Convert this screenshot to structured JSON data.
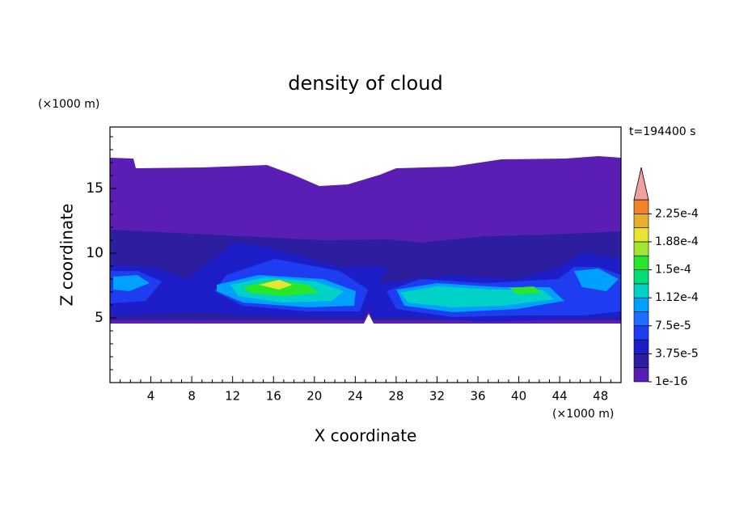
{
  "chart_data": {
    "type": "contour",
    "title": "density of cloud",
    "xlabel": "X coordinate",
    "ylabel": "Z coordinate",
    "x_unit": "(×1000 m)",
    "y_unit": "(×1000 m)",
    "time_label": "t=194400 s",
    "xlim": [
      0,
      50
    ],
    "ylim": [
      0,
      19.75
    ],
    "xticks": [
      4,
      8,
      12,
      16,
      20,
      24,
      28,
      32,
      36,
      40,
      44,
      48
    ],
    "yticks": [
      5,
      10,
      15
    ],
    "colorbar": {
      "levels": [
        1e-16,
        1.875e-05,
        {
          "value": 3.75e-05,
          "label": "3.75e-5"
        },
        5.625e-05,
        {
          "value": 7.5e-05,
          "label": "7.5e-5"
        },
        9.375e-05,
        {
          "value": 0.000112,
          "label": "1.12e-4"
        },
        0.00013125,
        {
          "value": 0.00015,
          "label": "1.5e-4"
        },
        0.00016875,
        {
          "value": 0.000188,
          "label": "1.88e-4"
        },
        0.00020625,
        {
          "value": 0.000225,
          "label": "2.25e-4"
        }
      ],
      "colors": [
        "#5a1eb4",
        "#2d1ea0",
        "#1e1ec8",
        "#1e3cf0",
        "#1e6eff",
        "#00a0ff",
        "#00d2c8",
        "#00dc78",
        "#28e628",
        "#a0e632",
        "#e6e632",
        "#e6af2d",
        "#f08228"
      ],
      "extend_color": "#f0a0a0"
    }
  }
}
